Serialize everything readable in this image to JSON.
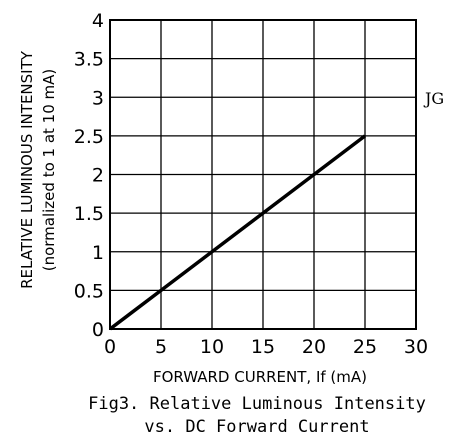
{
  "chart_data": {
    "type": "line",
    "xlabel": "FORWARD CURRENT, If (mA)",
    "ylabel_line1": "RELATIVE LUMINOUS INTENSITY",
    "ylabel_line2": "(normalized to 1 at 10 mA)",
    "xlim": [
      0,
      30
    ],
    "ylim": [
      0,
      4
    ],
    "x_ticks": [
      "0",
      "5",
      "10",
      "15",
      "20",
      "25",
      "30"
    ],
    "y_ticks": [
      "0",
      "0.5",
      "1",
      "1.5",
      "2",
      "2.5",
      "3",
      "3.5",
      "4"
    ],
    "grid": true,
    "series": [
      {
        "x": [
          0,
          5,
          10,
          15,
          20,
          25
        ],
        "y": [
          0,
          0.5,
          1,
          1.5,
          2,
          2.5
        ]
      }
    ],
    "annotation": "JG",
    "caption_line1": "Fig3. Relative Luminous Intensity",
    "caption_line2": "vs. DC Forward Current"
  }
}
